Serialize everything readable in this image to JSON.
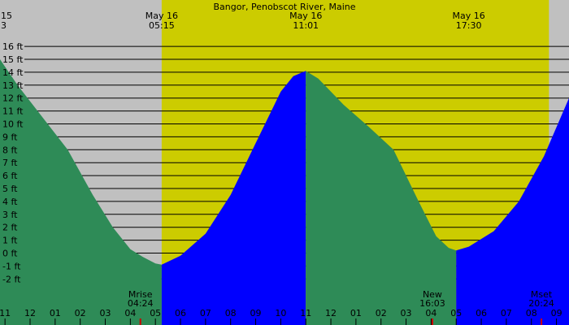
{
  "chart_data": {
    "type": "area",
    "title": "Bangor, Penobscot River, Maine",
    "y_unit": "ft",
    "ylim": [
      -3,
      17
    ],
    "y_ticks": [
      -2,
      -1,
      0,
      1,
      2,
      3,
      4,
      5,
      6,
      7,
      8,
      9,
      10,
      11,
      12,
      13,
      14,
      15,
      16
    ],
    "y_tick_labels": [
      "-2 ft",
      "-1 ft",
      "0 ft",
      "1 ft",
      "2 ft",
      "3 ft",
      "4 ft",
      "5 ft",
      "6 ft",
      "7 ft",
      "8 ft",
      "9 ft",
      "10 ft",
      "11 ft",
      "12 ft",
      "13 ft",
      "14 ft",
      "15 ft",
      "16 ft"
    ],
    "grid": true,
    "x_unit": "hour of day (May 15 23:00 to May 17 03:00)",
    "xlim": [
      -1.2,
      21.5
    ],
    "x_ticks": [
      -1,
      0,
      1,
      2,
      3,
      4,
      5,
      6,
      7,
      8,
      9,
      10,
      11,
      12,
      13,
      14,
      15,
      16,
      17,
      18,
      19,
      20,
      21
    ],
    "x_tick_labels": [
      "11",
      "12",
      "01",
      "02",
      "03",
      "04",
      "05",
      "06",
      "07",
      "08",
      "09",
      "10",
      "11",
      "12",
      "01",
      "02",
      "03",
      "04",
      "05",
      "06",
      "07",
      "08",
      "09"
    ],
    "daylight": {
      "start": 5.25,
      "end": 20.7
    },
    "top_date_labels": [
      {
        "x": 5.25,
        "date": "May 16",
        "time": "05:15"
      },
      {
        "x": 11.0,
        "date": "May 16",
        "time": "11:01"
      },
      {
        "x": 17.5,
        "date": "May 16",
        "time": "17:30"
      }
    ],
    "partial_left_label": {
      "date": "15",
      "time": "3"
    },
    "moon_events": [
      {
        "x": 4.4,
        "name": "Mrise",
        "time": "04:24"
      },
      {
        "x": 16.05,
        "name": "New",
        "time": "16:03"
      },
      {
        "x": 20.4,
        "name": "Mset",
        "time": "20:24"
      }
    ],
    "series": [
      {
        "state": "falling",
        "color": "#2e8b57",
        "x": [
          -1.2,
          -0.5,
          0.5,
          1.5,
          2.5,
          3.3,
          4.0,
          4.5,
          5.0,
          5.25
        ],
        "y": [
          15.0,
          13.0,
          10.5,
          8.0,
          4.5,
          2.0,
          0.3,
          -0.3,
          -0.8,
          -0.9
        ]
      },
      {
        "state": "rising",
        "color": "#0000ff",
        "x": [
          5.25,
          6.0,
          7.0,
          8.0,
          9.0,
          10.0,
          10.5,
          11.0
        ],
        "y": [
          -0.9,
          -0.2,
          1.5,
          4.5,
          8.5,
          12.5,
          13.7,
          14.1
        ]
      },
      {
        "state": "falling",
        "color": "#2e8b57",
        "x": [
          11.0,
          11.5,
          12.5,
          13.5,
          14.5,
          15.5,
          16.2,
          16.7,
          17.0
        ],
        "y": [
          14.1,
          13.5,
          11.5,
          9.8,
          8.0,
          4.0,
          1.3,
          0.4,
          0.2
        ]
      },
      {
        "state": "rising",
        "color": "#0000ff",
        "x": [
          17.0,
          17.5,
          18.5,
          19.5,
          20.5,
          21.5
        ],
        "y": [
          0.2,
          0.5,
          1.7,
          4.0,
          7.5,
          12.0
        ]
      }
    ]
  }
}
